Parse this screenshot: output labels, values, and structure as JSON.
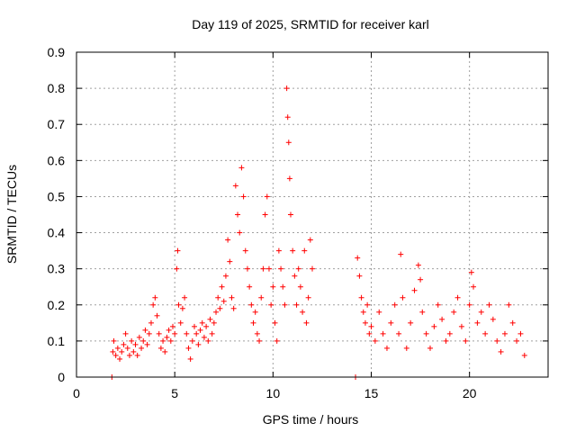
{
  "chart_data": {
    "type": "scatter",
    "title": "Day 119 of 2025, SRMTID for receiver karl",
    "xlabel": "GPS time / hours",
    "ylabel": "SRMTID / TECUs",
    "xlim": [
      0,
      24
    ],
    "ylim": [
      0,
      0.9
    ],
    "xticks": [
      0,
      5,
      10,
      15,
      20
    ],
    "xtick_labels": [
      "0",
      "5",
      "10",
      "15",
      "20"
    ],
    "yticks": [
      0,
      0.1,
      0.2,
      0.3,
      0.4,
      0.5,
      0.6,
      0.7,
      0.8,
      0.9
    ],
    "ytick_labels": [
      "0",
      "0.1",
      "0.2",
      "0.3",
      "0.4",
      "0.5",
      "0.6",
      "0.7",
      "0.8",
      "0.9"
    ],
    "grid": true,
    "marker": "+",
    "series": [
      {
        "name": "SRMTID",
        "color": "#ff0000",
        "points": [
          [
            1.8,
            0.0
          ],
          [
            1.85,
            0.07
          ],
          [
            1.9,
            0.1
          ],
          [
            2.0,
            0.06
          ],
          [
            2.1,
            0.08
          ],
          [
            2.2,
            0.05
          ],
          [
            2.3,
            0.07
          ],
          [
            2.4,
            0.09
          ],
          [
            2.5,
            0.12
          ],
          [
            2.6,
            0.08
          ],
          [
            2.7,
            0.06
          ],
          [
            2.8,
            0.1
          ],
          [
            2.9,
            0.07
          ],
          [
            3.0,
            0.09
          ],
          [
            3.1,
            0.06
          ],
          [
            3.2,
            0.11
          ],
          [
            3.3,
            0.08
          ],
          [
            3.4,
            0.1
          ],
          [
            3.5,
            0.13
          ],
          [
            3.6,
            0.09
          ],
          [
            3.7,
            0.12
          ],
          [
            3.8,
            0.15
          ],
          [
            3.9,
            0.2
          ],
          [
            4.0,
            0.22
          ],
          [
            4.1,
            0.17
          ],
          [
            4.2,
            0.12
          ],
          [
            4.3,
            0.08
          ],
          [
            4.4,
            0.1
          ],
          [
            4.5,
            0.07
          ],
          [
            4.6,
            0.11
          ],
          [
            4.7,
            0.13
          ],
          [
            4.8,
            0.1
          ],
          [
            4.9,
            0.14
          ],
          [
            5.0,
            0.12
          ],
          [
            5.1,
            0.3
          ],
          [
            5.15,
            0.35
          ],
          [
            5.2,
            0.2
          ],
          [
            5.3,
            0.15
          ],
          [
            5.4,
            0.19
          ],
          [
            5.5,
            0.22
          ],
          [
            5.6,
            0.12
          ],
          [
            5.7,
            0.08
          ],
          [
            5.8,
            0.05
          ],
          [
            5.9,
            0.1
          ],
          [
            6.0,
            0.14
          ],
          [
            6.1,
            0.12
          ],
          [
            6.2,
            0.09
          ],
          [
            6.3,
            0.13
          ],
          [
            6.4,
            0.15
          ],
          [
            6.5,
            0.11
          ],
          [
            6.6,
            0.14
          ],
          [
            6.7,
            0.1
          ],
          [
            6.8,
            0.16
          ],
          [
            6.9,
            0.12
          ],
          [
            7.0,
            0.15
          ],
          [
            7.1,
            0.18
          ],
          [
            7.2,
            0.22
          ],
          [
            7.3,
            0.19
          ],
          [
            7.4,
            0.25
          ],
          [
            7.5,
            0.21
          ],
          [
            7.6,
            0.28
          ],
          [
            7.7,
            0.38
          ],
          [
            7.8,
            0.32
          ],
          [
            7.9,
            0.22
          ],
          [
            8.0,
            0.19
          ],
          [
            8.1,
            0.53
          ],
          [
            8.2,
            0.45
          ],
          [
            8.3,
            0.4
          ],
          [
            8.4,
            0.58
          ],
          [
            8.5,
            0.5
          ],
          [
            8.6,
            0.35
          ],
          [
            8.7,
            0.3
          ],
          [
            8.8,
            0.25
          ],
          [
            8.9,
            0.2
          ],
          [
            9.0,
            0.15
          ],
          [
            9.1,
            0.18
          ],
          [
            9.2,
            0.12
          ],
          [
            9.3,
            0.1
          ],
          [
            9.4,
            0.22
          ],
          [
            9.5,
            0.3
          ],
          [
            9.6,
            0.45
          ],
          [
            9.7,
            0.5
          ],
          [
            9.8,
            0.3
          ],
          [
            9.9,
            0.2
          ],
          [
            10.0,
            0.25
          ],
          [
            10.1,
            0.15
          ],
          [
            10.2,
            0.1
          ],
          [
            10.3,
            0.35
          ],
          [
            10.4,
            0.3
          ],
          [
            10.5,
            0.25
          ],
          [
            10.6,
            0.2
          ],
          [
            10.7,
            0.8
          ],
          [
            10.75,
            0.72
          ],
          [
            10.8,
            0.65
          ],
          [
            10.85,
            0.55
          ],
          [
            10.9,
            0.45
          ],
          [
            11.0,
            0.35
          ],
          [
            11.1,
            0.28
          ],
          [
            11.2,
            0.2
          ],
          [
            11.3,
            0.3
          ],
          [
            11.4,
            0.25
          ],
          [
            11.5,
            0.18
          ],
          [
            11.6,
            0.35
          ],
          [
            11.7,
            0.15
          ],
          [
            11.8,
            0.22
          ],
          [
            11.9,
            0.38
          ],
          [
            12.0,
            0.3
          ],
          [
            14.2,
            0.0
          ],
          [
            14.3,
            0.33
          ],
          [
            14.4,
            0.28
          ],
          [
            14.5,
            0.22
          ],
          [
            14.6,
            0.18
          ],
          [
            14.7,
            0.15
          ],
          [
            14.8,
            0.2
          ],
          [
            14.9,
            0.12
          ],
          [
            15.0,
            0.14
          ],
          [
            15.2,
            0.1
          ],
          [
            15.4,
            0.18
          ],
          [
            15.6,
            0.12
          ],
          [
            15.8,
            0.08
          ],
          [
            16.0,
            0.15
          ],
          [
            16.2,
            0.2
          ],
          [
            16.4,
            0.12
          ],
          [
            16.5,
            0.34
          ],
          [
            16.6,
            0.22
          ],
          [
            16.8,
            0.08
          ],
          [
            17.0,
            0.15
          ],
          [
            17.2,
            0.24
          ],
          [
            17.4,
            0.31
          ],
          [
            17.5,
            0.27
          ],
          [
            17.6,
            0.18
          ],
          [
            17.8,
            0.12
          ],
          [
            18.0,
            0.08
          ],
          [
            18.2,
            0.14
          ],
          [
            18.4,
            0.2
          ],
          [
            18.6,
            0.16
          ],
          [
            18.8,
            0.1
          ],
          [
            19.0,
            0.12
          ],
          [
            19.2,
            0.18
          ],
          [
            19.4,
            0.22
          ],
          [
            19.6,
            0.14
          ],
          [
            19.8,
            0.1
          ],
          [
            20.0,
            0.2
          ],
          [
            20.1,
            0.29
          ],
          [
            20.2,
            0.25
          ],
          [
            20.4,
            0.15
          ],
          [
            20.6,
            0.18
          ],
          [
            20.8,
            0.12
          ],
          [
            21.0,
            0.2
          ],
          [
            21.2,
            0.16
          ],
          [
            21.4,
            0.1
          ],
          [
            21.6,
            0.07
          ],
          [
            21.8,
            0.12
          ],
          [
            22.0,
            0.2
          ],
          [
            22.2,
            0.15
          ],
          [
            22.4,
            0.1
          ],
          [
            22.6,
            0.12
          ],
          [
            22.8,
            0.06
          ]
        ]
      }
    ]
  }
}
